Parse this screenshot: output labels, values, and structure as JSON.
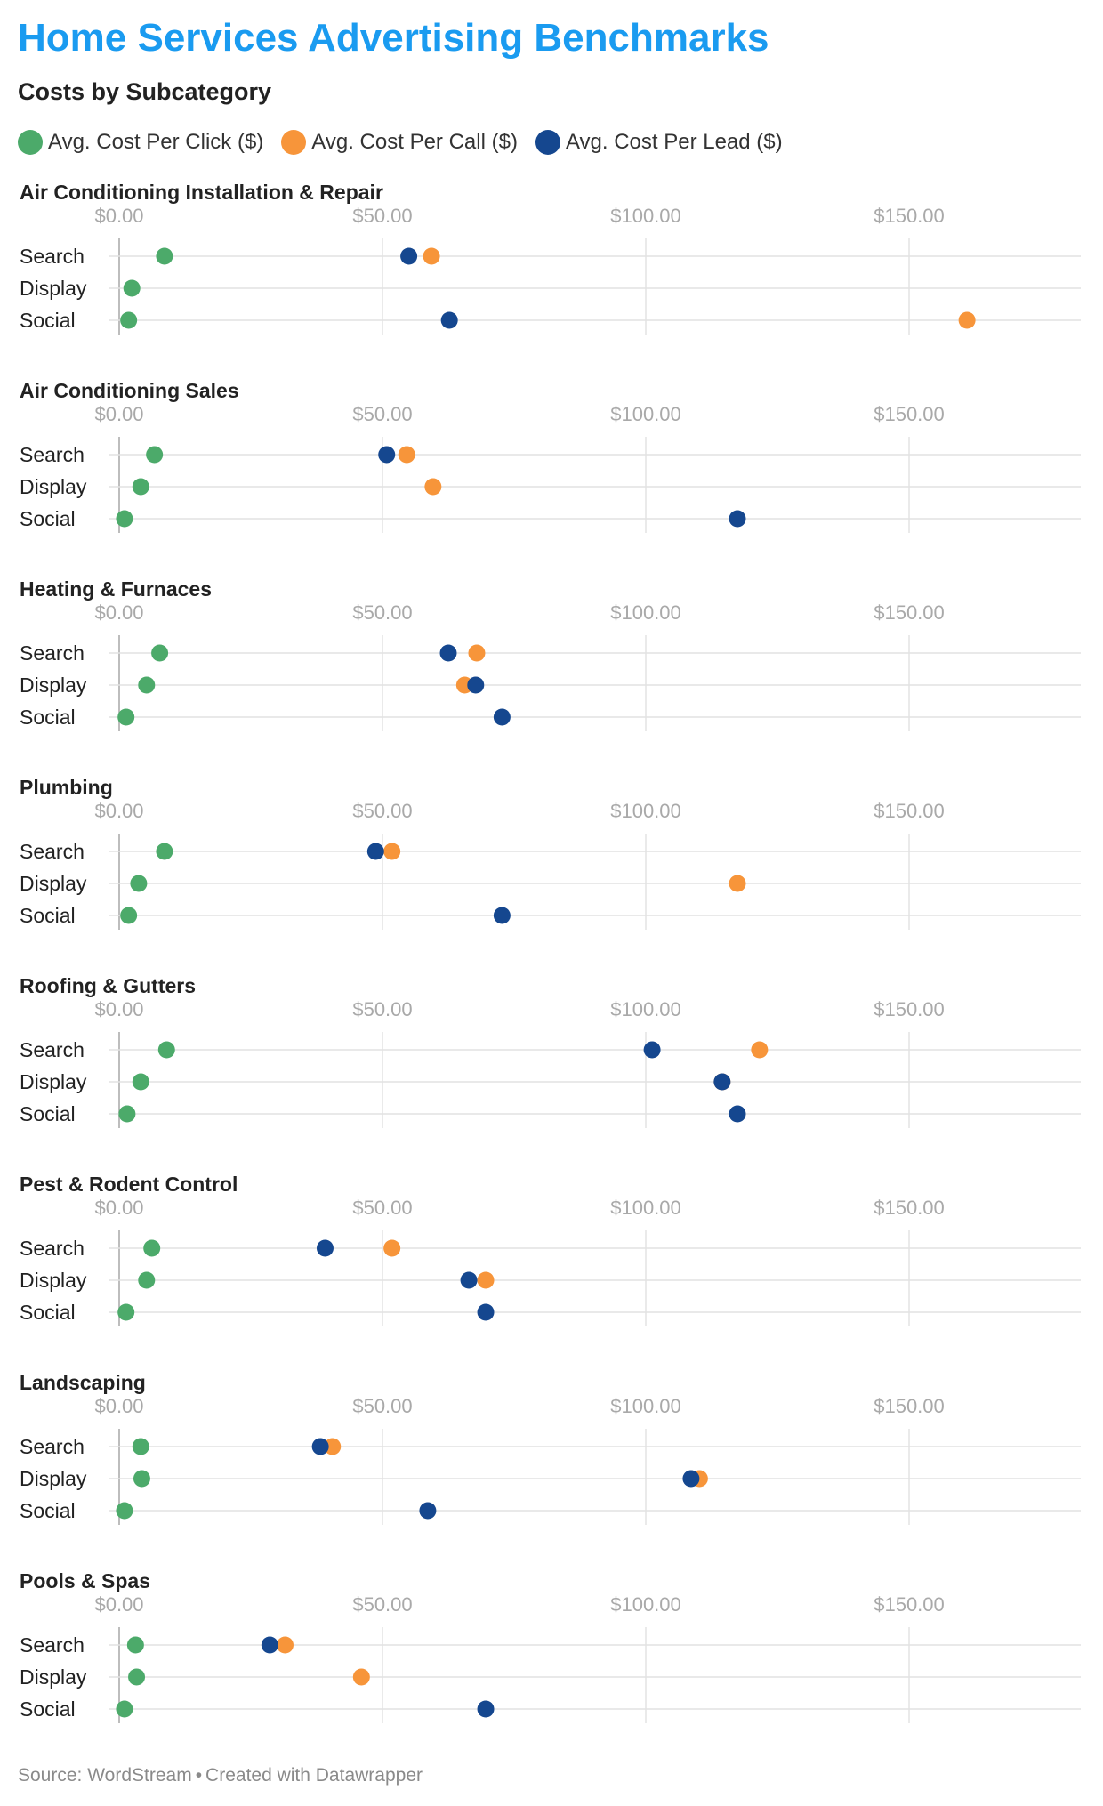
{
  "title": "Home Services Advertising Benchmarks",
  "subtitle": "Costs by Subcategory",
  "legend": [
    {
      "label": "Avg. Cost Per Click ($)",
      "color": "#4caa6a"
    },
    {
      "label": "Avg. Cost Per Call ($)",
      "color": "#f7953a"
    },
    {
      "label": "Avg. Cost Per Lead ($)",
      "color": "#15478f"
    }
  ],
  "source": {
    "text": "Source: WordStream",
    "separator": "•",
    "credit": "Created with Datawrapper"
  },
  "chart_data": {
    "type": "scatter",
    "xlim": [
      0,
      182
    ],
    "x_ticks": [
      0,
      50,
      100,
      150
    ],
    "x_tick_labels": [
      "$0.00",
      "$50.00",
      "$100.00",
      "$150.00"
    ],
    "rows": [
      "Search",
      "Display",
      "Social"
    ],
    "grid": true,
    "series_names": [
      "Avg. Cost Per Click ($)",
      "Avg. Cost Per Call ($)",
      "Avg. Cost Per Lead ($)"
    ],
    "panels": [
      {
        "title": "Air Conditioning Installation & Repair",
        "click": [
          8.6,
          2.4,
          1.8
        ],
        "call": [
          59.3,
          null,
          161.0
        ],
        "lead": [
          55.0,
          null,
          62.7
        ]
      },
      {
        "title": "Air Conditioning Sales",
        "click": [
          6.7,
          4.1,
          1.0
        ],
        "call": [
          54.6,
          59.6,
          null
        ],
        "lead": [
          50.8,
          null,
          117.4
        ]
      },
      {
        "title": "Heating & Furnaces",
        "click": [
          7.7,
          5.2,
          1.3
        ],
        "call": [
          67.9,
          65.6,
          null
        ],
        "lead": [
          62.5,
          67.7,
          72.7
        ]
      },
      {
        "title": "Plumbing",
        "click": [
          8.6,
          3.7,
          1.8
        ],
        "call": [
          51.8,
          117.4,
          null
        ],
        "lead": [
          48.7,
          null,
          72.7
        ]
      },
      {
        "title": "Roofing & Gutters",
        "click": [
          9.0,
          4.1,
          1.5
        ],
        "call": [
          121.6,
          114.5,
          null
        ],
        "lead": [
          101.2,
          114.5,
          117.4
        ]
      },
      {
        "title": "Pest & Rodent Control",
        "click": [
          6.2,
          5.2,
          1.3
        ],
        "call": [
          51.8,
          69.6,
          null
        ],
        "lead": [
          39.1,
          66.4,
          69.6
        ]
      },
      {
        "title": "Landscaping",
        "click": [
          4.1,
          4.3,
          1.0
        ],
        "call": [
          40.5,
          110.2,
          null
        ],
        "lead": [
          38.2,
          108.6,
          58.6
        ]
      },
      {
        "title": "Pools & Spas",
        "click": [
          3.1,
          3.3,
          1.0
        ],
        "call": [
          31.5,
          46.0,
          null
        ],
        "lead": [
          28.6,
          null,
          69.6
        ]
      }
    ]
  }
}
